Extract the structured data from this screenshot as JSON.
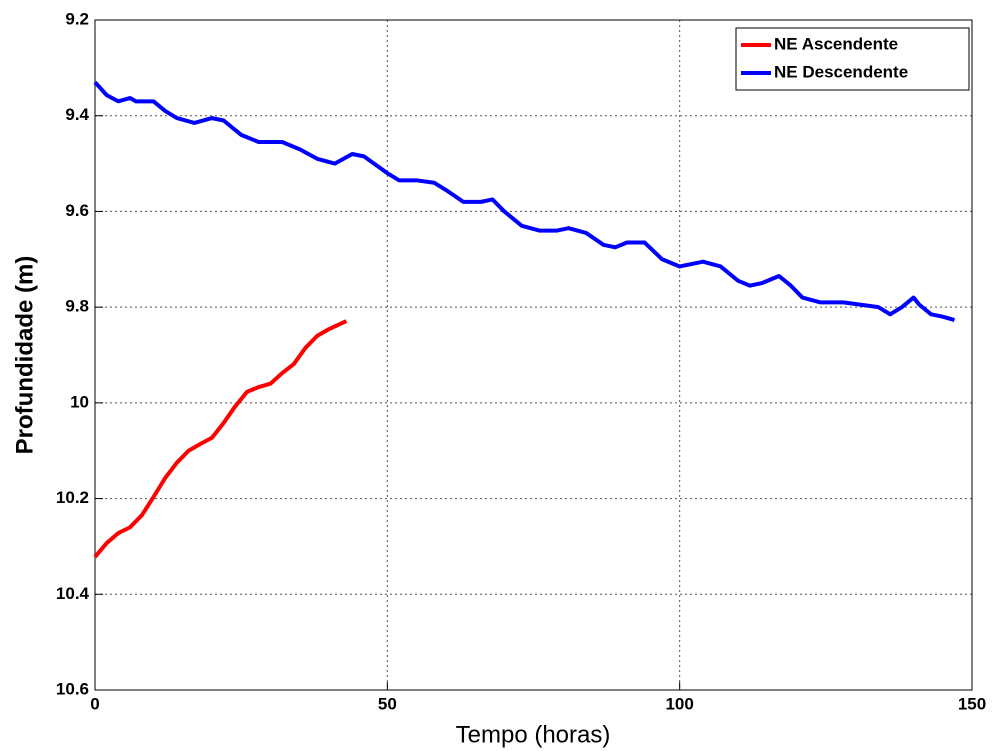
{
  "chart_data": {
    "type": "line",
    "xlabel": "Tempo (horas)",
    "ylabel": "Profundidade (m)",
    "xlim": [
      0,
      150
    ],
    "xticks": [
      0,
      50,
      100,
      150
    ],
    "ylim": [
      9.2,
      10.6
    ],
    "yticks": [
      9.2,
      9.4,
      9.6,
      9.8,
      10,
      10.2,
      10.4,
      10.6
    ],
    "yreverse": true,
    "grid": true,
    "legend": "top-right",
    "series": [
      {
        "name": "NE Ascendente",
        "color": "#ff0000",
        "x": [
          0,
          2,
          4,
          6,
          8,
          10,
          12,
          14,
          16,
          18,
          20,
          22,
          24,
          26,
          28,
          30,
          32,
          34,
          36,
          38,
          40,
          43
        ],
        "values": [
          10.322,
          10.293,
          10.272,
          10.26,
          10.235,
          10.197,
          10.157,
          10.125,
          10.1,
          10.086,
          10.073,
          10.042,
          10.007,
          9.977,
          9.967,
          9.96,
          9.938,
          9.919,
          9.885,
          9.86,
          9.846,
          9.829
        ]
      },
      {
        "name": "NE Descendente",
        "color": "#0000ff",
        "x": [
          0,
          2,
          4,
          6,
          7,
          10,
          12,
          14,
          17,
          20,
          22,
          25,
          28,
          32,
          35,
          38,
          41,
          44,
          46,
          50,
          52,
          55,
          58,
          60,
          63,
          66,
          68,
          70,
          73,
          76,
          79,
          81,
          84,
          87,
          89,
          91,
          94,
          97,
          100,
          104,
          107,
          110,
          112,
          114,
          117,
          119,
          121,
          124,
          128,
          131,
          134,
          136,
          138,
          140,
          141,
          143,
          145,
          147
        ],
        "values": [
          9.33,
          9.357,
          9.37,
          9.363,
          9.37,
          9.37,
          9.39,
          9.405,
          9.415,
          9.405,
          9.41,
          9.44,
          9.455,
          9.455,
          9.47,
          9.49,
          9.5,
          9.48,
          9.485,
          9.52,
          9.535,
          9.535,
          9.54,
          9.555,
          9.58,
          9.58,
          9.575,
          9.6,
          9.63,
          9.64,
          9.64,
          9.635,
          9.645,
          9.67,
          9.675,
          9.665,
          9.665,
          9.7,
          9.715,
          9.705,
          9.715,
          9.745,
          9.755,
          9.75,
          9.735,
          9.755,
          9.78,
          9.79,
          9.79,
          9.795,
          9.8,
          9.815,
          9.8,
          9.78,
          9.795,
          9.815,
          9.82,
          9.827
        ]
      }
    ]
  }
}
